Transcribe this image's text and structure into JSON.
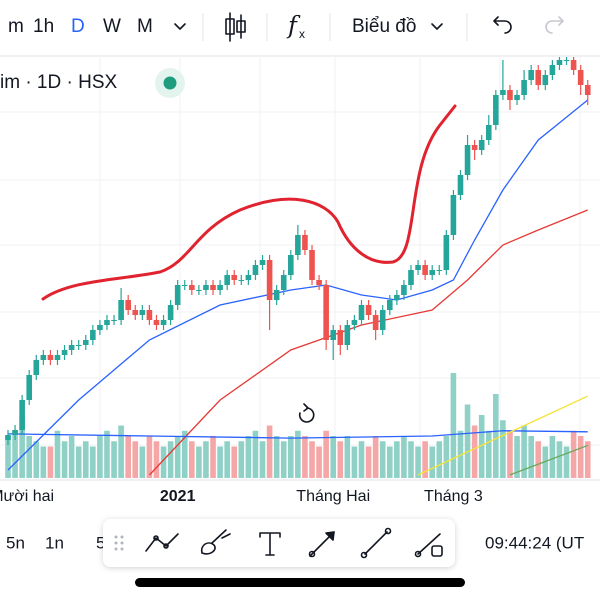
{
  "toolbar": {
    "intervals": [
      "m",
      "1h",
      "D",
      "W",
      "M"
    ],
    "chart_type": "Biểu đồ"
  },
  "legend": {
    "symbol": "im · 1D · HSX"
  },
  "chart_data": {
    "type": "candlestick",
    "up_color": "#26a69a",
    "down_color": "#ef5350",
    "volume_up_color": "#8fd1c6",
    "volume_down_color": "#f5a6a6",
    "ylim": [
      0,
      480
    ],
    "volume_ylim": [
      0,
      100
    ],
    "categories": [
      null,
      null,
      "Mười hai",
      null,
      null,
      null,
      null,
      null,
      null,
      null,
      null,
      null,
      null,
      null,
      null,
      null,
      null,
      null,
      null,
      null,
      null,
      null,
      null,
      null,
      "2021",
      null,
      null,
      null,
      null,
      null,
      null,
      null,
      null,
      null,
      null,
      null,
      null,
      null,
      null,
      null,
      null,
      null,
      null,
      null,
      null,
      null,
      "Tháng Hai",
      null,
      null,
      null,
      null,
      null,
      null,
      null,
      null,
      null,
      null,
      null,
      null,
      null,
      null,
      null,
      null,
      "Tháng 3",
      null,
      null,
      null,
      null,
      null,
      null,
      null,
      null,
      null,
      null,
      null,
      null,
      null,
      null,
      null,
      null,
      null,
      null,
      null
    ],
    "open": [
      40,
      45,
      50,
      80,
      105,
      120,
      125,
      120,
      125,
      130,
      135,
      135,
      140,
      150,
      155,
      160,
      160,
      180,
      170,
      165,
      170,
      160,
      155,
      160,
      175,
      195,
      195,
      190,
      190,
      195,
      190,
      195,
      205,
      200,
      200,
      205,
      215,
      220,
      180,
      190,
      205,
      225,
      245,
      230,
      200,
      195,
      140,
      150,
      135,
      155,
      160,
      175,
      165,
      150,
      170,
      180,
      185,
      195,
      210,
      215,
      205,
      210,
      210,
      245,
      285,
      305,
      335,
      330,
      340,
      355,
      385,
      390,
      380,
      385,
      400,
      410,
      395,
      405,
      415,
      420,
      420,
      410,
      395
    ],
    "high": [
      50,
      55,
      85,
      110,
      125,
      130,
      130,
      130,
      135,
      140,
      140,
      145,
      155,
      160,
      165,
      165,
      192,
      185,
      175,
      175,
      175,
      165,
      165,
      180,
      200,
      200,
      200,
      195,
      200,
      200,
      200,
      210,
      210,
      205,
      210,
      220,
      225,
      225,
      195,
      210,
      230,
      255,
      250,
      235,
      205,
      200,
      155,
      155,
      160,
      165,
      180,
      180,
      170,
      175,
      185,
      190,
      200,
      215,
      220,
      220,
      215,
      215,
      250,
      290,
      310,
      345,
      340,
      345,
      365,
      390,
      420,
      395,
      390,
      410,
      415,
      415,
      410,
      420,
      425,
      425,
      425,
      415,
      400
    ],
    "low": [
      35,
      40,
      45,
      75,
      100,
      115,
      115,
      115,
      120,
      125,
      130,
      130,
      135,
      145,
      150,
      155,
      155,
      165,
      160,
      160,
      155,
      150,
      150,
      155,
      170,
      190,
      185,
      185,
      185,
      185,
      185,
      190,
      195,
      195,
      195,
      200,
      210,
      150,
      175,
      185,
      200,
      220,
      225,
      195,
      190,
      130,
      120,
      125,
      130,
      150,
      155,
      160,
      140,
      145,
      165,
      175,
      180,
      190,
      205,
      200,
      200,
      205,
      205,
      240,
      280,
      300,
      320,
      325,
      335,
      350,
      380,
      370,
      375,
      380,
      395,
      390,
      390,
      400,
      410,
      415,
      405,
      385,
      375
    ],
    "close": [
      45,
      50,
      80,
      105,
      120,
      125,
      120,
      125,
      130,
      135,
      135,
      140,
      150,
      155,
      160,
      160,
      180,
      170,
      165,
      170,
      160,
      155,
      160,
      175,
      195,
      195,
      190,
      190,
      195,
      190,
      195,
      205,
      200,
      200,
      205,
      215,
      220,
      180,
      190,
      205,
      225,
      245,
      230,
      200,
      195,
      140,
      150,
      135,
      155,
      160,
      175,
      165,
      150,
      170,
      180,
      185,
      195,
      210,
      215,
      205,
      210,
      210,
      245,
      285,
      305,
      335,
      330,
      340,
      355,
      385,
      390,
      380,
      385,
      400,
      410,
      395,
      405,
      415,
      420,
      420,
      410,
      395,
      385
    ],
    "volume": [
      40,
      45,
      60,
      40,
      35,
      30,
      30,
      45,
      35,
      40,
      30,
      35,
      30,
      40,
      45,
      35,
      50,
      40,
      35,
      30,
      40,
      35,
      30,
      35,
      40,
      45,
      35,
      30,
      35,
      40,
      30,
      35,
      30,
      35,
      40,
      45,
      35,
      50,
      40,
      35,
      40,
      45,
      40,
      35,
      30,
      45,
      40,
      35,
      40,
      30,
      35,
      30,
      40,
      35,
      30,
      35,
      40,
      35,
      30,
      35,
      30,
      35,
      40,
      100,
      45,
      70,
      50,
      60,
      45,
      80,
      55,
      45,
      40,
      50,
      40,
      35,
      30,
      40,
      35,
      30,
      45,
      40,
      35
    ],
    "lines": [
      {
        "color": "#2962ff",
        "x": [
          0,
          10,
          20,
          30,
          40,
          45,
          50,
          55,
          60,
          63,
          66,
          70,
          75,
          82
        ],
        "values": [
          10,
          80,
          140,
          175,
          190,
          195,
          185,
          180,
          190,
          200,
          240,
          290,
          340,
          380
        ]
      },
      {
        "color": "#e53935",
        "x": [
          20,
          30,
          40,
          50,
          60,
          65,
          70,
          75,
          82
        ],
        "values": [
          5,
          80,
          130,
          155,
          170,
          200,
          235,
          250,
          270
        ]
      },
      {
        "color": "#2962ff",
        "axis": "volume",
        "x": [
          0,
          20,
          40,
          60,
          70,
          82
        ],
        "values": [
          42,
          40,
          38,
          40,
          45,
          44
        ]
      },
      {
        "color": "#f5e33b",
        "axis": "volume",
        "x": [
          58,
          82
        ],
        "values": [
          3,
          78
        ]
      },
      {
        "color": "#66a85a",
        "axis": "volume",
        "x": [
          71,
          82
        ],
        "values": [
          3,
          31
        ]
      }
    ]
  },
  "bottom_bar": {
    "ranges": [
      "5n",
      "1n",
      "5"
    ],
    "time": "09:44:24 (UT"
  }
}
